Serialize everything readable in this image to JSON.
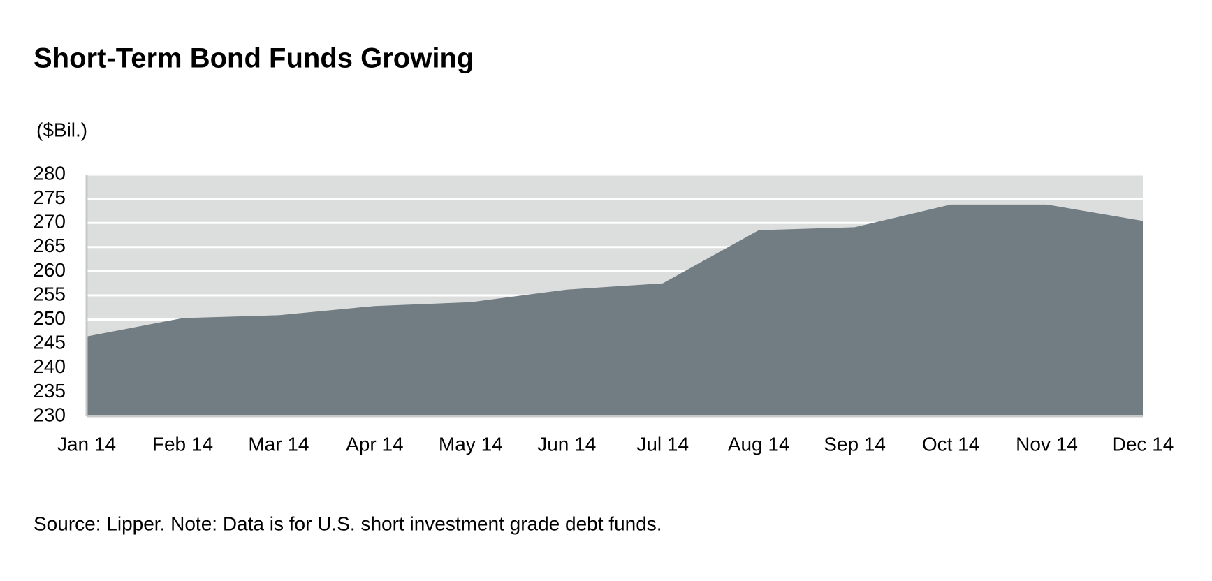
{
  "chart_data": {
    "type": "area",
    "title": "Short-Term Bond Funds Growing",
    "y_label": "($Bil.)",
    "note": "Source: Lipper. Note: Data is for U.S. short investment grade debt funds.",
    "categories": [
      "Jan 14",
      "Feb 14",
      "Mar 14",
      "Apr 14",
      "May 14",
      "Jun 14",
      "Jul 14",
      "Aug 14",
      "Sep 14",
      "Oct 14",
      "Nov 14",
      "Dec 14"
    ],
    "values": [
      246.5,
      250.3,
      250.9,
      252.8,
      253.6,
      256.2,
      257.5,
      268.5,
      269.1,
      273.8,
      273.8,
      270.4
    ],
    "color": "#717c83",
    "ylim": [
      230,
      280
    ],
    "yticks": [
      230,
      235,
      240,
      245,
      250,
      255,
      260,
      265,
      270,
      275,
      280
    ],
    "grid": true
  }
}
